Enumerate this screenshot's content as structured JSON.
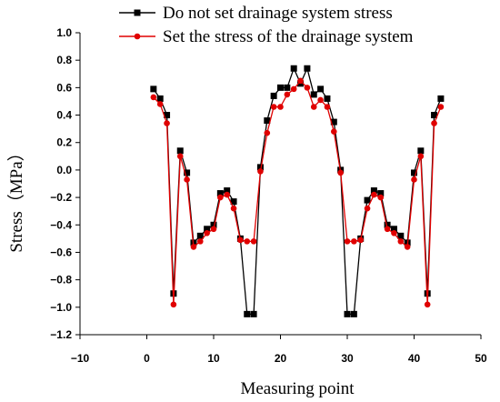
{
  "chart_data": {
    "type": "line",
    "xlabel": "Measuring point",
    "ylabel": "Stress（MPa）",
    "xlim": [
      -10,
      50
    ],
    "ylim": [
      -1.2,
      1.0
    ],
    "xticks": [
      -10,
      0,
      10,
      20,
      30,
      40,
      50
    ],
    "yticks": [
      -1.2,
      -1.0,
      -0.8,
      -0.6,
      -0.4,
      -0.2,
      0.0,
      0.2,
      0.4,
      0.6,
      0.8,
      1.0
    ],
    "xtick_labels": [
      "−10",
      "0",
      "10",
      "20",
      "30",
      "40",
      "50"
    ],
    "ytick_labels": [
      "−1.2",
      "−1.0",
      "−0.8",
      "−0.6",
      "−0.4",
      "−0.2",
      "0.0",
      "0.2",
      "0.4",
      "0.6",
      "0.8",
      "1.0"
    ],
    "grid": false,
    "legend_position": "top-right",
    "x": [
      1,
      2,
      3,
      4,
      5,
      6,
      7,
      8,
      9,
      10,
      11,
      12,
      13,
      14,
      15,
      16,
      17,
      18,
      19,
      20,
      21,
      22,
      23,
      24,
      25,
      26,
      27,
      28,
      29,
      30,
      31,
      32,
      33,
      34,
      35,
      36,
      37,
      38,
      39,
      40,
      41,
      42,
      43,
      44
    ],
    "series": [
      {
        "name": "Do not set drainage system stress",
        "color": "#000000",
        "marker": "square",
        "values": [
          0.59,
          0.52,
          0.4,
          -0.9,
          0.14,
          -0.02,
          -0.53,
          -0.48,
          -0.43,
          -0.4,
          -0.17,
          -0.15,
          -0.23,
          -0.5,
          -1.05,
          -1.05,
          0.02,
          0.36,
          0.54,
          0.6,
          0.6,
          0.74,
          0.63,
          0.74,
          0.55,
          0.59,
          0.52,
          0.35,
          0.0,
          -1.05,
          -1.05,
          -0.5,
          -0.22,
          -0.15,
          -0.17,
          -0.4,
          -0.43,
          -0.48,
          -0.53,
          -0.02,
          0.14,
          -0.9,
          0.4,
          0.52
        ]
      },
      {
        "name": "Set the stress of the drainage system",
        "color": "#e00000",
        "marker": "circle",
        "values": [
          0.53,
          0.48,
          0.34,
          -0.98,
          0.1,
          -0.07,
          -0.56,
          -0.52,
          -0.46,
          -0.43,
          -0.2,
          -0.18,
          -0.28,
          -0.51,
          -0.52,
          -0.52,
          -0.01,
          0.27,
          0.46,
          0.46,
          0.55,
          0.59,
          0.65,
          0.6,
          0.46,
          0.51,
          0.46,
          0.28,
          -0.02,
          -0.52,
          -0.52,
          -0.51,
          -0.28,
          -0.18,
          -0.2,
          -0.43,
          -0.46,
          -0.52,
          -0.56,
          -0.07,
          0.1,
          -0.98,
          0.34,
          0.46
        ]
      }
    ]
  }
}
